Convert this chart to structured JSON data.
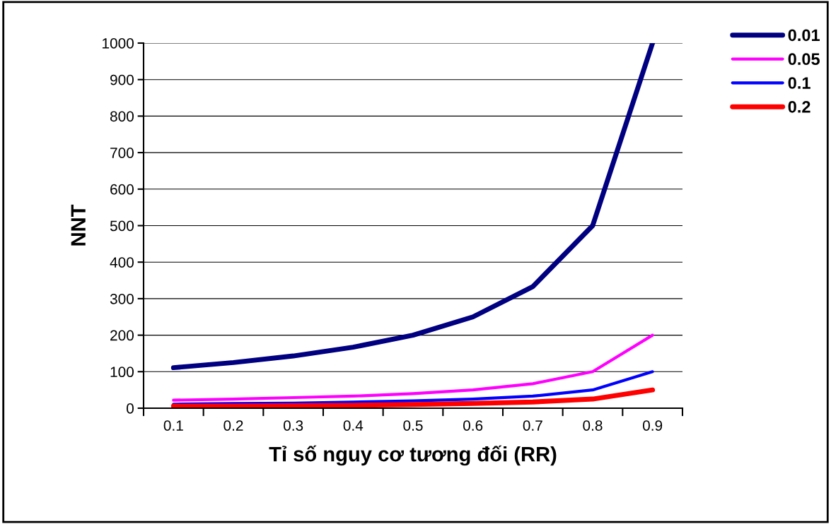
{
  "chart_data": {
    "type": "line",
    "xlabel": "Tỉ số nguy cơ tương đối (RR)",
    "ylabel": "NNT",
    "categories": [
      "0.1",
      "0.2",
      "0.3",
      "0.4",
      "0.5",
      "0.6",
      "0.7",
      "0.8",
      "0.9"
    ],
    "series": [
      {
        "name": "0.01",
        "color": "#000080",
        "values": [
          111,
          125,
          143,
          167,
          200,
          250,
          333,
          500,
          1000
        ]
      },
      {
        "name": "0.05",
        "color": "#ff00ff",
        "values": [
          22,
          25,
          29,
          33,
          40,
          50,
          67,
          100,
          200
        ]
      },
      {
        "name": "0.1",
        "color": "#0000ff",
        "values": [
          11,
          13,
          14,
          17,
          20,
          25,
          33,
          50,
          100
        ]
      },
      {
        "name": "0.2",
        "color": "#ff0000",
        "values": [
          6,
          6,
          7,
          8,
          10,
          13,
          17,
          25,
          50
        ]
      }
    ],
    "ylim": [
      0,
      1000
    ],
    "yticks": [
      0,
      100,
      200,
      300,
      400,
      500,
      600,
      700,
      800,
      900,
      1000
    ],
    "grid": "y",
    "legend": "top right",
    "marker": "none",
    "line_style": "solid"
  }
}
